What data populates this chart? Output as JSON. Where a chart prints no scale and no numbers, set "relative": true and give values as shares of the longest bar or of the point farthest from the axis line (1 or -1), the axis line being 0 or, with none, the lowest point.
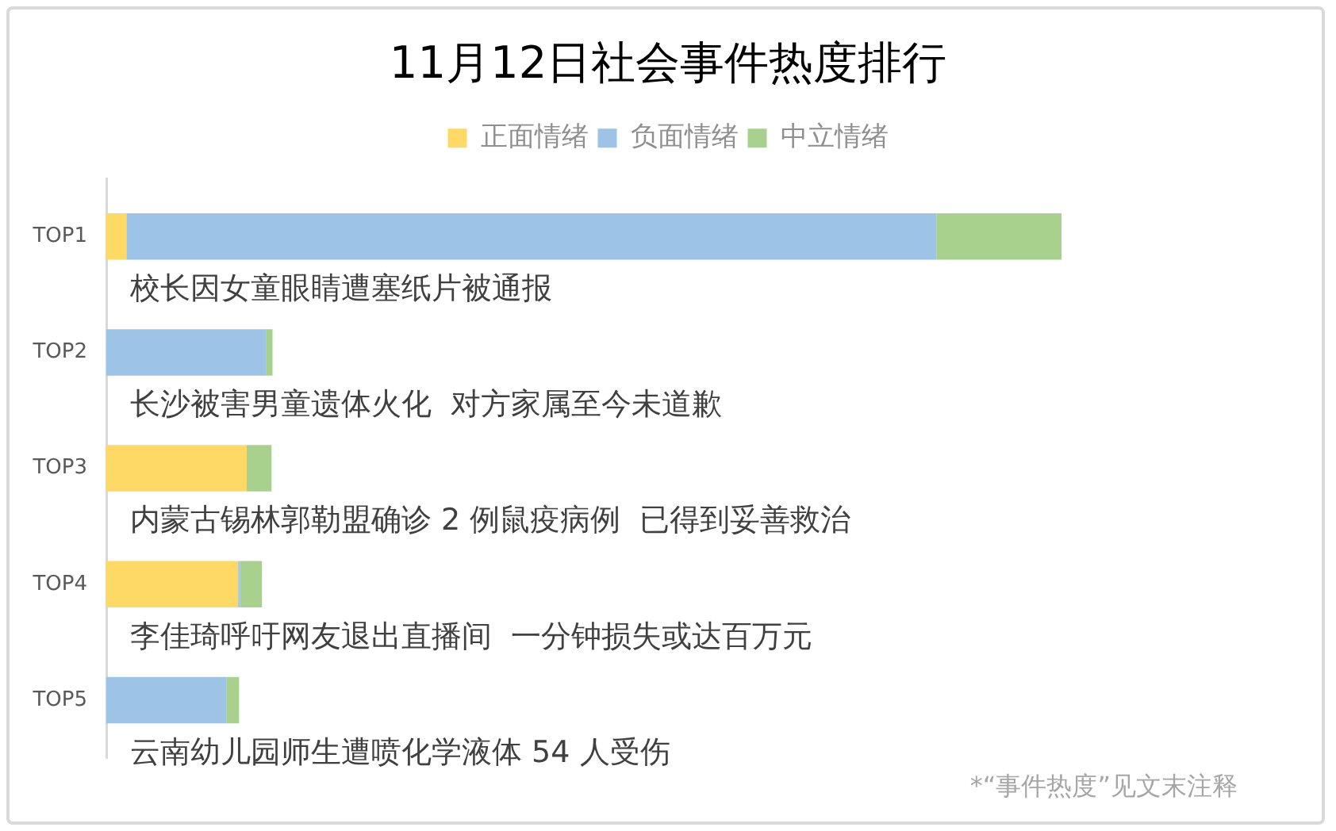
{
  "chart_data": {
    "type": "bar",
    "title": "11月12日社会事件热度排行",
    "categories": [
      "TOP1",
      "TOP2",
      "TOP3",
      "TOP4",
      "TOP5"
    ],
    "orientation": "horizontal",
    "stacked": true,
    "relative": true,
    "legend": "top",
    "series": [
      {
        "name": "正面情绪",
        "color": "#ffd966",
        "values": [
          0.021,
          null,
          0.147,
          0.138,
          null
        ]
      },
      {
        "name": "负面情绪",
        "color": "#9dc3e6",
        "values": [
          0.848,
          0.167,
          null,
          0.002,
          0.126
        ]
      },
      {
        "name": "中立情绪",
        "color": "#a9d18e",
        "values": [
          0.131,
          0.007,
          0.026,
          0.023,
          0.013
        ]
      }
    ],
    "annotations": [
      "校长因女童眼睛遭塞纸片被通报",
      "长沙被害男童遗体火化  对方家属至今未道歉",
      "内蒙古锡林郭勒盟确诊 2 例鼠疫病例  已得到妥善救治",
      "李佳琦呼吁网友退出直播间  一分钟损失或达百万元",
      "云南幼儿园师生遭喷化学液体 54 人受伤",
      "*“事件热度”见文末注释"
    ]
  }
}
